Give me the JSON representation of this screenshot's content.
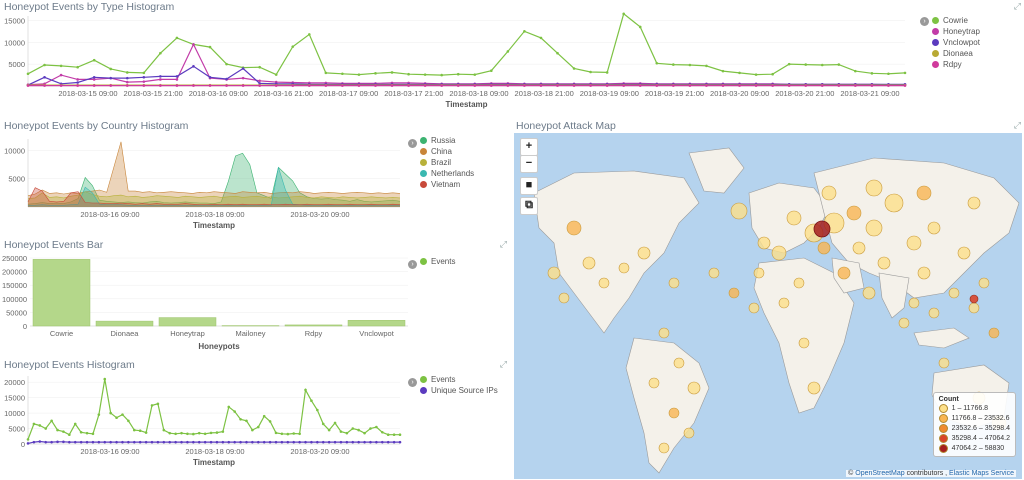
{
  "panels": {
    "type_hist": {
      "title": "Honeypot Events by Type Histogram"
    },
    "country_hist": {
      "title": "Honeypot Events by Country Histogram"
    },
    "events_bar": {
      "title": "Honeypot Events Bar"
    },
    "events_hist": {
      "title": "Honeypot Events Histogram"
    },
    "attack_map": {
      "title": "Honeypot Attack Map"
    }
  },
  "colors": {
    "green": "#7dc243",
    "magenta": "#c23ca8",
    "purple": "#5b3bbf",
    "gold": "#b8a934",
    "pink": "#d03a9c",
    "russia": "#3cb371",
    "china": "#c8853a",
    "brazil": "#b8b13a",
    "netherlands": "#3ab8b0",
    "vietnam": "#c84a3a"
  },
  "chart_data": [
    {
      "type": "line",
      "title": "Honeypot Events by Type Histogram",
      "xlabel": "Timestamp",
      "ylabel": "",
      "ylim": [
        0,
        16000
      ],
      "yticks": [
        "5000",
        "10000",
        "15000"
      ],
      "xticks": [
        "2018-03-15 09:00",
        "2018-03-15 21:00",
        "2018-03-16 09:00",
        "2018-03-16 21:00",
        "2018-03-17 09:00",
        "2018-03-17 21:00",
        "2018-03-18 09:00",
        "2018-03-18 21:00",
        "2018-03-19 09:00",
        "2018-03-19 21:00",
        "2018-03-20 09:00",
        "2018-03-20 21:00",
        "2018-03-21 09:00"
      ],
      "legend_position": "right",
      "series": [
        {
          "name": "Cowrie",
          "values": [
            2800,
            4800,
            4600,
            4300,
            5900,
            3900,
            3100,
            3000,
            7500,
            11000,
            9500,
            8900,
            5000,
            4200,
            4300,
            2600,
            9000,
            11800,
            3000,
            2800,
            2600,
            2900,
            3100,
            2700,
            2600,
            2500,
            2700,
            2600,
            3500,
            7900,
            12500,
            11000,
            7500,
            4000,
            3200,
            3100,
            16500,
            13500,
            5200,
            4900,
            4800,
            4600,
            3400,
            3000,
            2600,
            2700,
            5000,
            4900,
            4800,
            4900,
            3400,
            2900,
            2800,
            3000
          ]
        },
        {
          "name": "Honeytrap",
          "values": [
            300,
            500,
            2500,
            1500,
            1500,
            1800,
            900,
            1000,
            1500,
            1500,
            9500,
            1800,
            1500,
            1800,
            1200,
            900,
            800,
            700,
            700,
            600,
            600,
            600,
            700,
            700,
            600,
            500,
            500,
            500,
            600,
            600,
            500,
            500,
            500,
            500,
            500,
            500,
            600,
            600,
            500,
            500,
            500,
            500,
            500,
            500,
            500,
            500,
            400,
            400,
            400,
            400,
            400,
            400,
            300,
            300
          ]
        },
        {
          "name": "Vnclowpot",
          "values": [
            200,
            2000,
            500,
            800,
            2000,
            1800,
            1800,
            2000,
            2200,
            2200,
            4500,
            2000,
            1600,
            4000,
            600,
            500,
            500,
            400,
            400,
            400,
            400,
            400,
            400,
            400,
            400,
            400,
            400,
            400,
            400,
            400,
            400,
            400,
            400,
            400,
            400,
            400,
            400,
            400,
            400,
            400,
            400,
            400,
            400,
            400,
            400,
            400,
            400,
            400,
            400,
            400,
            400,
            400,
            400,
            400
          ]
        },
        {
          "name": "Dionaea",
          "values": [
            200,
            200,
            200,
            200,
            200,
            200,
            200,
            200,
            200,
            200,
            200,
            200,
            200,
            200,
            200,
            200,
            200,
            200,
            200,
            200,
            200,
            200,
            200,
            200,
            200,
            200,
            200,
            200,
            200,
            200,
            200,
            200,
            200,
            200,
            200,
            200,
            200,
            200,
            200,
            200,
            200,
            200,
            200,
            200,
            200,
            200,
            200,
            200,
            200,
            200,
            200,
            200,
            200,
            200
          ]
        },
        {
          "name": "Rdpy",
          "values": [
            100,
            100,
            100,
            100,
            100,
            100,
            100,
            100,
            100,
            100,
            100,
            100,
            100,
            100,
            100,
            100,
            100,
            100,
            100,
            100,
            100,
            100,
            100,
            100,
            100,
            100,
            100,
            100,
            100,
            100,
            100,
            100,
            100,
            100,
            100,
            100,
            100,
            100,
            100,
            100,
            100,
            100,
            100,
            100,
            100,
            100,
            100,
            100,
            100,
            100,
            100,
            100,
            100,
            100
          ]
        }
      ]
    },
    {
      "type": "area",
      "title": "Honeypot Events by Country Histogram",
      "xlabel": "Timestamp",
      "ylabel": "",
      "ylim": [
        0,
        12000
      ],
      "yticks": [
        "5000",
        "10000"
      ],
      "xticks": [
        "2018-03-16 09:00",
        "2018-03-18 09:00",
        "2018-03-20 09:00"
      ],
      "legend_position": "right",
      "series": [
        {
          "name": "Russia",
          "values": [
            500,
            600,
            800,
            600,
            700,
            600,
            900,
            1500,
            5200,
            3800,
            1200,
            1000,
            900,
            800,
            900,
            800,
            700,
            900,
            1000,
            800,
            700,
            800,
            900,
            800,
            700,
            700,
            600,
            900,
            4500,
            9000,
            9500,
            7500,
            2500,
            2000,
            1500,
            7000,
            5800,
            4600,
            2500,
            1800,
            1500,
            1400,
            1500,
            1300,
            1200,
            1000,
            1300,
            1000,
            900,
            1000,
            1100,
            1200,
            1000
          ]
        },
        {
          "name": "China",
          "values": [
            2000,
            2300,
            3000,
            2400,
            2500,
            2300,
            2500,
            2400,
            2700,
            2800,
            3000,
            2600,
            7000,
            11500,
            2800,
            2800,
            2600,
            2700,
            2500,
            2600,
            2700,
            2600,
            2500,
            2400,
            2600,
            2500,
            2700,
            2600,
            2500,
            2400,
            2700,
            2600,
            2500,
            2600,
            2400,
            2500,
            2600,
            2500,
            2700,
            2600,
            2400,
            2500,
            2600,
            2500,
            2400,
            2500,
            2600,
            2500,
            2400,
            2500,
            2400,
            2500,
            2400
          ]
        },
        {
          "name": "Brazil",
          "values": [
            1500,
            1600,
            2500,
            1700,
            1800,
            1600,
            1900,
            2100,
            2700,
            2200,
            1900,
            1800,
            2000,
            2100,
            1800,
            1900,
            1700,
            1800,
            2000,
            1900,
            1800,
            1700,
            1900,
            1800,
            1700,
            1800,
            1900,
            1700,
            1800,
            1900,
            1700,
            1800,
            1900,
            1700,
            1800,
            1600,
            1700,
            1800,
            1900,
            1700,
            1600,
            1800,
            1700,
            1600,
            1800,
            1700,
            1600,
            1700,
            1800,
            1700,
            1600,
            1700,
            1600
          ]
        },
        {
          "name": "Netherlands",
          "values": [
            300,
            300,
            400,
            300,
            300,
            300,
            400,
            500,
            3500,
            2500,
            500,
            400,
            400,
            400,
            300,
            300,
            300,
            300,
            300,
            300,
            300,
            300,
            300,
            300,
            300,
            300,
            300,
            300,
            300,
            300,
            300,
            300,
            300,
            300,
            300,
            7000,
            3000,
            500,
            400,
            300,
            300,
            300,
            300,
            300,
            300,
            300,
            300,
            300,
            300,
            300,
            300,
            300,
            300
          ]
        },
        {
          "name": "Vietnam",
          "values": [
            900,
            3400,
            2800,
            1000,
            900,
            1000,
            2500,
            2700,
            800,
            700,
            700,
            600,
            600,
            700,
            600,
            500,
            600,
            500,
            600,
            500,
            500,
            500,
            600,
            500,
            400,
            400,
            500,
            400,
            500,
            400,
            500,
            400,
            400,
            500,
            400,
            400,
            500,
            400,
            400,
            500,
            400,
            400,
            500,
            400,
            400,
            500,
            400,
            400,
            500,
            400,
            400,
            500,
            400
          ]
        }
      ]
    },
    {
      "type": "bar",
      "title": "Honeypot Events Bar",
      "xlabel": "Honeypots",
      "ylabel": "",
      "ylim": [
        0,
        250000
      ],
      "yticks": [
        "0",
        "50000",
        "100000",
        "150000",
        "200000",
        "250000"
      ],
      "categories": [
        "Cowrie",
        "Dionaea",
        "Honeytrap",
        "Mailoney",
        "Rdpy",
        "Vnclowpot"
      ],
      "legend_position": "right",
      "series": [
        {
          "name": "Events",
          "values": [
            245000,
            18000,
            31000,
            1500,
            4000,
            21000
          ]
        }
      ]
    },
    {
      "type": "line",
      "title": "Honeypot Events Histogram",
      "xlabel": "Timestamp",
      "ylabel": "",
      "ylim": [
        0,
        22000
      ],
      "yticks": [
        "0",
        "5000",
        "10000",
        "15000",
        "20000"
      ],
      "xticks": [
        "2018-03-16 09:00",
        "2018-03-18 09:00",
        "2018-03-20 09:00"
      ],
      "legend_position": "right",
      "series": [
        {
          "name": "Events",
          "values": [
            1500,
            6500,
            6000,
            5000,
            7500,
            4500,
            4000,
            3000,
            6500,
            3800,
            3500,
            3300,
            9500,
            21000,
            10000,
            8500,
            9500,
            7500,
            4500,
            4300,
            3700,
            12500,
            13000,
            4500,
            3500,
            3300,
            3500,
            3300,
            3200,
            3500,
            3300,
            3600,
            3700,
            4000,
            12000,
            10500,
            8000,
            7500,
            4500,
            5500,
            9000,
            7300,
            3600,
            3300,
            3200,
            3400,
            3300,
            17500,
            14000,
            11000,
            6500,
            4500,
            6800,
            4000,
            3500,
            5000,
            4500,
            3500,
            5000,
            5500,
            3800,
            3000,
            3000,
            3000
          ]
        },
        {
          "name": "Unique Source IPs",
          "values": [
            200,
            600,
            800,
            600,
            600,
            700,
            700,
            600,
            600,
            600,
            600,
            600,
            600,
            600,
            600,
            600,
            600,
            600,
            600,
            600,
            600,
            600,
            600,
            600,
            600,
            600,
            600,
            600,
            600,
            600,
            600,
            600,
            600,
            600,
            600,
            600,
            600,
            600,
            600,
            600,
            600,
            600,
            600,
            600,
            600,
            600,
            600,
            600,
            600,
            600,
            600,
            600,
            600,
            600,
            600,
            600,
            600,
            600,
            600,
            600,
            600,
            600,
            600,
            600
          ]
        }
      ]
    }
  ],
  "map": {
    "controls": [
      "+",
      "−",
      "■",
      "⧉"
    ],
    "legend_title": "Count",
    "legend": [
      {
        "label": "1 – 11766.8",
        "color": "#fde08a"
      },
      {
        "label": "11766.8 – 23532.6",
        "color": "#f9b552"
      },
      {
        "label": "23532.6 – 35298.4",
        "color": "#f08a30"
      },
      {
        "label": "35298.4 – 47064.2",
        "color": "#d9452b"
      },
      {
        "label": "47064.2 – 58830",
        "color": "#a51f1f"
      }
    ],
    "attribution": {
      "prefix": "© ",
      "osm": "OpenStreetMap",
      "mid": " contributors , ",
      "ems": "Elastic Maps Service"
    }
  }
}
